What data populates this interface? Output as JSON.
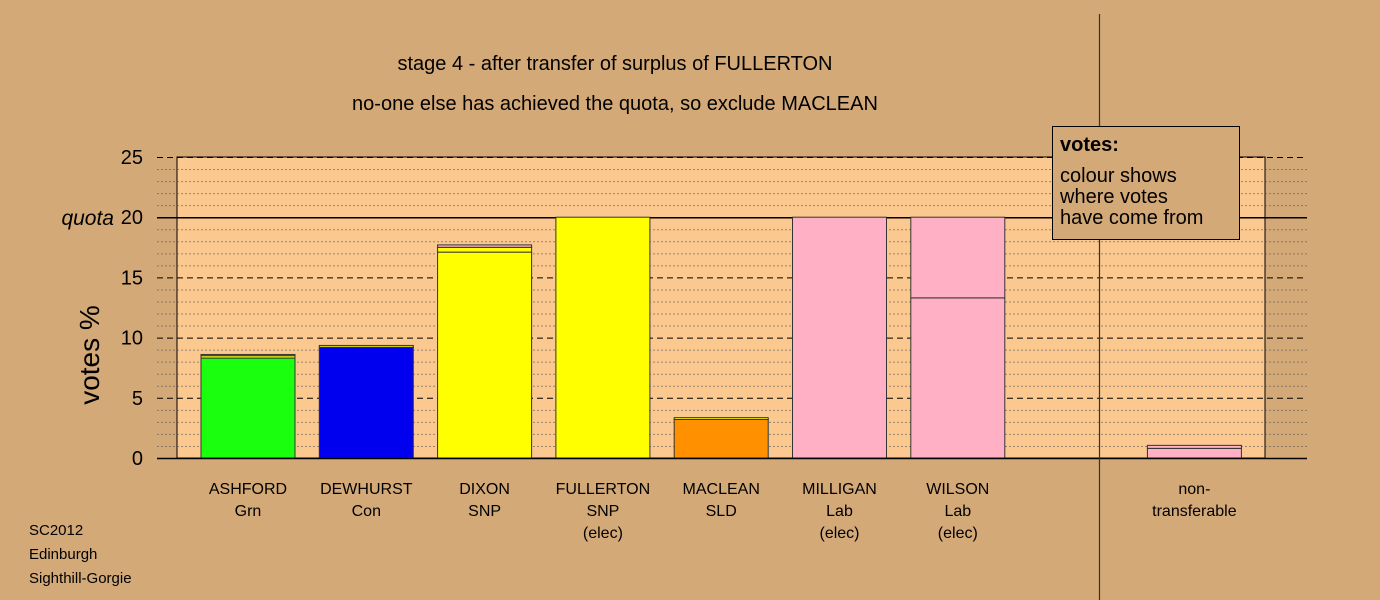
{
  "title_line1": "stage 4 - after transfer of surplus of FULLERTON",
  "title_line2": "no-one else has achieved the quota, so exclude MACLEAN",
  "legend": {
    "title": "votes:",
    "lines": [
      "colour shows",
      "where votes",
      "have come from"
    ]
  },
  "footer": [
    "SC2012",
    "Edinburgh",
    "Sighthill-Gorgie"
  ],
  "colors": {
    "background": "#d4a978",
    "plot_background": "#fbc98f",
    "Grn": "#1aff0d",
    "Con": "#0000ee",
    "SNP": "#ffff00",
    "SLD": "#ff9100",
    "Lab": "#ffb0c4"
  },
  "chart_data": {
    "type": "bar",
    "stacked": true,
    "ylabel": "votes %",
    "ylim": [
      0,
      25
    ],
    "yticks": [
      0,
      5,
      10,
      15,
      20,
      25
    ],
    "quota": {
      "label": "quota",
      "value": 20
    },
    "grid": true,
    "legend_position": "top-right",
    "categories": [
      {
        "name": "ASHFORD",
        "party": "Grn",
        "note": ""
      },
      {
        "name": "DEWHURST",
        "party": "Con",
        "note": ""
      },
      {
        "name": "DIXON",
        "party": "SNP",
        "note": ""
      },
      {
        "name": "FULLERTON",
        "party": "SNP",
        "note": "(elec)"
      },
      {
        "name": "MACLEAN",
        "party": "SLD",
        "note": ""
      },
      {
        "name": "MILLIGAN",
        "party": "Lab",
        "note": "(elec)"
      },
      {
        "name": "WILSON",
        "party": "Lab",
        "note": "(elec)"
      },
      {
        "name": "",
        "party": "",
        "note": ""
      },
      {
        "name": "non-",
        "party": "transferable",
        "note": ""
      }
    ],
    "bars": [
      [
        {
          "value": 8.3,
          "color": "#1aff0d"
        },
        {
          "value": 0.2,
          "color": "#ffff00"
        },
        {
          "value": 0.1,
          "color": "#ffb0c4"
        }
      ],
      [
        {
          "value": 9.2,
          "color": "#0000ee"
        },
        {
          "value": 0.15,
          "color": "#ffff00"
        }
      ],
      [
        {
          "value": 17.1,
          "color": "#ffff00"
        },
        {
          "value": 0.4,
          "color": "#ffff00"
        },
        {
          "value": 0.2,
          "color": "#ffb0c4"
        }
      ],
      [
        {
          "value": 20.0,
          "color": "#ffff00"
        }
      ],
      [
        {
          "value": 3.2,
          "color": "#ff9100"
        },
        {
          "value": 0.15,
          "color": "#ffff00"
        }
      ],
      [
        {
          "value": 20.0,
          "color": "#ffb0c4"
        }
      ],
      [
        {
          "value": 13.3,
          "color": "#ffb0c4"
        },
        {
          "value": 6.7,
          "color": "#ffb0c4"
        }
      ],
      [],
      [
        {
          "value": 0.8,
          "color": "#ffb0c4"
        },
        {
          "value": 0.25,
          "color": "#ffb0c4"
        }
      ]
    ]
  }
}
